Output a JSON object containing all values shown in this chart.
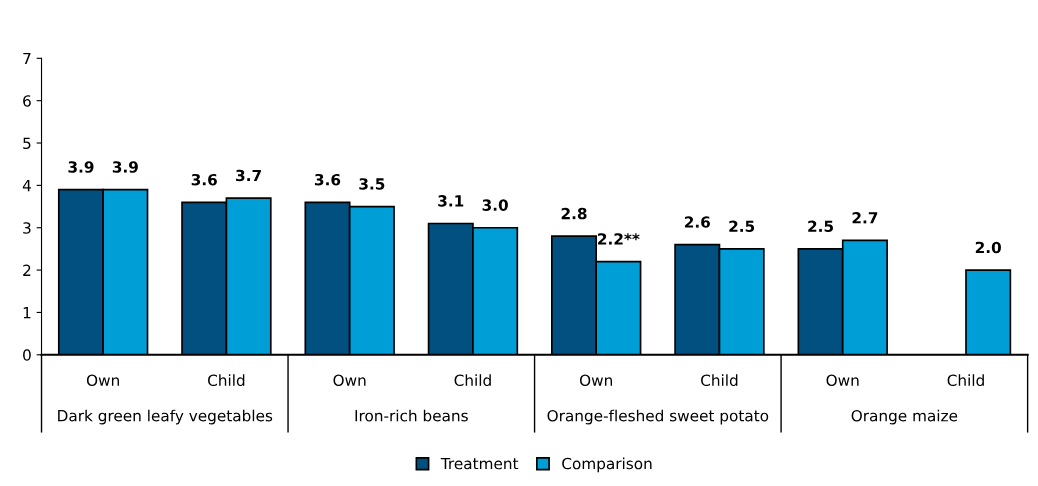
{
  "chart_data": {
    "type": "bar",
    "categories": [
      "Own",
      "Child",
      "Own",
      "Child",
      "Own",
      "Child",
      "Own",
      "Child"
    ],
    "annotations": [
      "Dark green leafy vegetables",
      "Iron-rich beans",
      "Orange-fleshed sweet potato",
      "Orange maize"
    ],
    "series": [
      {
        "name": "Treatment",
        "color": "#02507f",
        "values": [
          3.9,
          3.6,
          3.6,
          3.1,
          2.8,
          2.6,
          2.5,
          null
        ],
        "value_labels": [
          "3.9",
          "3.6",
          "3.6",
          "3.1",
          "2.8",
          "2.6",
          "2.5",
          null
        ]
      },
      {
        "name": "Comparison",
        "color": "#009ed6",
        "values": [
          3.9,
          3.7,
          3.5,
          3.0,
          2.2,
          2.5,
          2.7,
          2.0
        ],
        "value_labels": [
          "3.9",
          "3.7",
          "3.5",
          "3.0",
          "2.2**",
          "2.5",
          "2.7",
          "2.0"
        ]
      }
    ],
    "ylim": [
      0,
      7
    ],
    "yticks": [
      0,
      1,
      2,
      3,
      4,
      5,
      6,
      7
    ],
    "grid": false,
    "legend": "bottom"
  }
}
